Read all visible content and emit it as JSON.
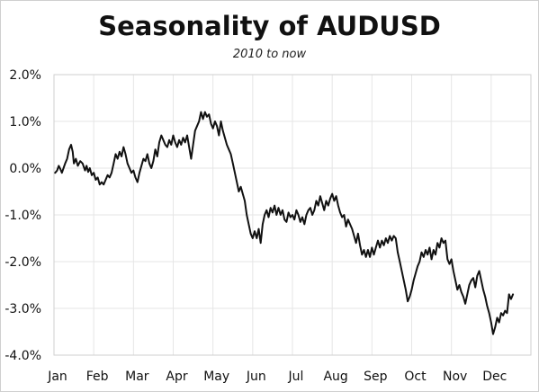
{
  "chart_data": {
    "type": "line",
    "title": "Seasonality of AUDUSD",
    "subtitle": "2010 to now",
    "xlabel": "",
    "ylabel": "",
    "ylim": [
      -4.0,
      2.0
    ],
    "yticks": [
      2.0,
      1.0,
      0.0,
      -1.0,
      -2.0,
      -3.0,
      -4.0
    ],
    "ytick_labels": [
      "2.0%",
      "1.0%",
      "0.0%",
      "-1.0%",
      "-2.0%",
      "-3.0%",
      "-4.0%"
    ],
    "xlim": [
      0,
      12
    ],
    "xtick_labels": [
      "Jan",
      "Feb",
      "Mar",
      "Apr",
      "May",
      "Jun",
      "Jul",
      "Aug",
      "Sep",
      "Oct",
      "Nov",
      "Dec"
    ],
    "grid": true,
    "legend": "none",
    "series": [
      {
        "color": "#111111",
        "points": [
          [
            0.03,
            -0.1
          ],
          [
            0.08,
            -0.05
          ],
          [
            0.12,
            0.05
          ],
          [
            0.16,
            -0.02
          ],
          [
            0.2,
            -0.1
          ],
          [
            0.24,
            0.0
          ],
          [
            0.28,
            0.1
          ],
          [
            0.33,
            0.2
          ],
          [
            0.38,
            0.4
          ],
          [
            0.43,
            0.5
          ],
          [
            0.47,
            0.35
          ],
          [
            0.5,
            0.1
          ],
          [
            0.55,
            0.2
          ],
          [
            0.6,
            0.05
          ],
          [
            0.66,
            0.15
          ],
          [
            0.72,
            0.1
          ],
          [
            0.78,
            -0.05
          ],
          [
            0.82,
            0.05
          ],
          [
            0.86,
            -0.08
          ],
          [
            0.9,
            0.0
          ],
          [
            0.95,
            -0.15
          ],
          [
            1.0,
            -0.1
          ],
          [
            1.05,
            -0.25
          ],
          [
            1.1,
            -0.2
          ],
          [
            1.15,
            -0.35
          ],
          [
            1.2,
            -0.3
          ],
          [
            1.25,
            -0.35
          ],
          [
            1.3,
            -0.25
          ],
          [
            1.35,
            -0.15
          ],
          [
            1.4,
            -0.2
          ],
          [
            1.45,
            -0.1
          ],
          [
            1.5,
            0.1
          ],
          [
            1.55,
            0.3
          ],
          [
            1.6,
            0.2
          ],
          [
            1.65,
            0.35
          ],
          [
            1.7,
            0.25
          ],
          [
            1.75,
            0.45
          ],
          [
            1.8,
            0.3
          ],
          [
            1.85,
            0.1
          ],
          [
            1.9,
            0.0
          ],
          [
            1.95,
            -0.1
          ],
          [
            2.0,
            -0.05
          ],
          [
            2.05,
            -0.2
          ],
          [
            2.1,
            -0.3
          ],
          [
            2.15,
            -0.1
          ],
          [
            2.2,
            0.05
          ],
          [
            2.25,
            0.2
          ],
          [
            2.3,
            0.15
          ],
          [
            2.35,
            0.3
          ],
          [
            2.4,
            0.1
          ],
          [
            2.45,
            0.0
          ],
          [
            2.5,
            0.15
          ],
          [
            2.55,
            0.4
          ],
          [
            2.6,
            0.25
          ],
          [
            2.65,
            0.55
          ],
          [
            2.7,
            0.7
          ],
          [
            2.75,
            0.6
          ],
          [
            2.8,
            0.5
          ],
          [
            2.85,
            0.45
          ],
          [
            2.9,
            0.6
          ],
          [
            2.95,
            0.5
          ],
          [
            3.0,
            0.7
          ],
          [
            3.05,
            0.55
          ],
          [
            3.1,
            0.45
          ],
          [
            3.15,
            0.6
          ],
          [
            3.2,
            0.5
          ],
          [
            3.25,
            0.65
          ],
          [
            3.3,
            0.55
          ],
          [
            3.35,
            0.7
          ],
          [
            3.4,
            0.45
          ],
          [
            3.45,
            0.2
          ],
          [
            3.5,
            0.5
          ],
          [
            3.55,
            0.8
          ],
          [
            3.6,
            0.9
          ],
          [
            3.65,
            1.0
          ],
          [
            3.7,
            1.2
          ],
          [
            3.75,
            1.05
          ],
          [
            3.8,
            1.2
          ],
          [
            3.85,
            1.1
          ],
          [
            3.9,
            1.15
          ],
          [
            3.95,
            0.95
          ],
          [
            4.0,
            0.85
          ],
          [
            4.05,
            1.0
          ],
          [
            4.1,
            0.9
          ],
          [
            4.15,
            0.7
          ],
          [
            4.2,
            1.0
          ],
          [
            4.25,
            0.8
          ],
          [
            4.3,
            0.65
          ],
          [
            4.35,
            0.5
          ],
          [
            4.4,
            0.4
          ],
          [
            4.45,
            0.3
          ],
          [
            4.5,
            0.1
          ],
          [
            4.55,
            -0.1
          ],
          [
            4.6,
            -0.3
          ],
          [
            4.65,
            -0.5
          ],
          [
            4.7,
            -0.4
          ],
          [
            4.75,
            -0.55
          ],
          [
            4.8,
            -0.7
          ],
          [
            4.85,
            -1.0
          ],
          [
            4.9,
            -1.2
          ],
          [
            4.95,
            -1.4
          ],
          [
            5.0,
            -1.5
          ],
          [
            5.05,
            -1.35
          ],
          [
            5.1,
            -1.5
          ],
          [
            5.15,
            -1.3
          ],
          [
            5.2,
            -1.6
          ],
          [
            5.25,
            -1.2
          ],
          [
            5.3,
            -1.0
          ],
          [
            5.35,
            -0.9
          ],
          [
            5.4,
            -1.05
          ],
          [
            5.45,
            -0.85
          ],
          [
            5.5,
            -0.95
          ],
          [
            5.55,
            -0.8
          ],
          [
            5.6,
            -1.0
          ],
          [
            5.65,
            -0.85
          ],
          [
            5.7,
            -1.0
          ],
          [
            5.75,
            -0.9
          ],
          [
            5.8,
            -1.1
          ],
          [
            5.85,
            -1.15
          ],
          [
            5.9,
            -0.95
          ],
          [
            5.95,
            -1.05
          ],
          [
            6.0,
            -1.0
          ],
          [
            6.05,
            -1.1
          ],
          [
            6.1,
            -0.9
          ],
          [
            6.15,
            -1.0
          ],
          [
            6.2,
            -1.15
          ],
          [
            6.25,
            -1.05
          ],
          [
            6.3,
            -1.2
          ],
          [
            6.35,
            -1.0
          ],
          [
            6.4,
            -0.9
          ],
          [
            6.45,
            -0.85
          ],
          [
            6.5,
            -1.0
          ],
          [
            6.55,
            -0.9
          ],
          [
            6.6,
            -0.7
          ],
          [
            6.65,
            -0.8
          ],
          [
            6.7,
            -0.6
          ],
          [
            6.75,
            -0.75
          ],
          [
            6.8,
            -0.9
          ],
          [
            6.85,
            -0.7
          ],
          [
            6.9,
            -0.8
          ],
          [
            6.95,
            -0.65
          ],
          [
            7.0,
            -0.55
          ],
          [
            7.05,
            -0.7
          ],
          [
            7.1,
            -0.6
          ],
          [
            7.15,
            -0.8
          ],
          [
            7.2,
            -0.95
          ],
          [
            7.25,
            -1.05
          ],
          [
            7.3,
            -1.0
          ],
          [
            7.35,
            -1.25
          ],
          [
            7.4,
            -1.1
          ],
          [
            7.45,
            -1.2
          ],
          [
            7.5,
            -1.3
          ],
          [
            7.55,
            -1.45
          ],
          [
            7.6,
            -1.6
          ],
          [
            7.65,
            -1.4
          ],
          [
            7.7,
            -1.65
          ],
          [
            7.75,
            -1.85
          ],
          [
            7.8,
            -1.75
          ],
          [
            7.85,
            -1.9
          ],
          [
            7.9,
            -1.75
          ],
          [
            7.95,
            -1.9
          ],
          [
            8.0,
            -1.7
          ],
          [
            8.05,
            -1.85
          ],
          [
            8.1,
            -1.7
          ],
          [
            8.15,
            -1.55
          ],
          [
            8.2,
            -1.7
          ],
          [
            8.25,
            -1.55
          ],
          [
            8.3,
            -1.65
          ],
          [
            8.35,
            -1.5
          ],
          [
            8.4,
            -1.6
          ],
          [
            8.45,
            -1.45
          ],
          [
            8.5,
            -1.55
          ],
          [
            8.55,
            -1.45
          ],
          [
            8.6,
            -1.5
          ],
          [
            8.65,
            -1.8
          ],
          [
            8.7,
            -2.0
          ],
          [
            8.75,
            -2.2
          ],
          [
            8.8,
            -2.4
          ],
          [
            8.85,
            -2.6
          ],
          [
            8.9,
            -2.85
          ],
          [
            8.95,
            -2.75
          ],
          [
            9.0,
            -2.6
          ],
          [
            9.05,
            -2.4
          ],
          [
            9.1,
            -2.25
          ],
          [
            9.15,
            -2.1
          ],
          [
            9.2,
            -2.0
          ],
          [
            9.25,
            -1.8
          ],
          [
            9.3,
            -1.9
          ],
          [
            9.35,
            -1.75
          ],
          [
            9.4,
            -1.85
          ],
          [
            9.45,
            -1.7
          ],
          [
            9.5,
            -1.95
          ],
          [
            9.55,
            -1.75
          ],
          [
            9.6,
            -1.85
          ],
          [
            9.65,
            -1.6
          ],
          [
            9.7,
            -1.7
          ],
          [
            9.75,
            -1.5
          ],
          [
            9.8,
            -1.6
          ],
          [
            9.85,
            -1.55
          ],
          [
            9.9,
            -1.95
          ],
          [
            9.95,
            -2.05
          ],
          [
            10.0,
            -1.95
          ],
          [
            10.05,
            -2.2
          ],
          [
            10.1,
            -2.4
          ],
          [
            10.15,
            -2.6
          ],
          [
            10.2,
            -2.5
          ],
          [
            10.25,
            -2.65
          ],
          [
            10.3,
            -2.75
          ],
          [
            10.35,
            -2.9
          ],
          [
            10.4,
            -2.7
          ],
          [
            10.45,
            -2.5
          ],
          [
            10.5,
            -2.4
          ],
          [
            10.55,
            -2.35
          ],
          [
            10.6,
            -2.55
          ],
          [
            10.65,
            -2.3
          ],
          [
            10.7,
            -2.2
          ],
          [
            10.75,
            -2.4
          ],
          [
            10.8,
            -2.6
          ],
          [
            10.85,
            -2.75
          ],
          [
            10.9,
            -2.95
          ],
          [
            10.95,
            -3.1
          ],
          [
            11.0,
            -3.3
          ],
          [
            11.05,
            -3.55
          ],
          [
            11.1,
            -3.4
          ],
          [
            11.15,
            -3.2
          ],
          [
            11.2,
            -3.3
          ],
          [
            11.25,
            -3.1
          ],
          [
            11.3,
            -3.15
          ],
          [
            11.35,
            -3.05
          ],
          [
            11.4,
            -3.1
          ],
          [
            11.45,
            -2.7
          ],
          [
            11.5,
            -2.8
          ],
          [
            11.55,
            -2.7
          ]
        ]
      }
    ]
  }
}
